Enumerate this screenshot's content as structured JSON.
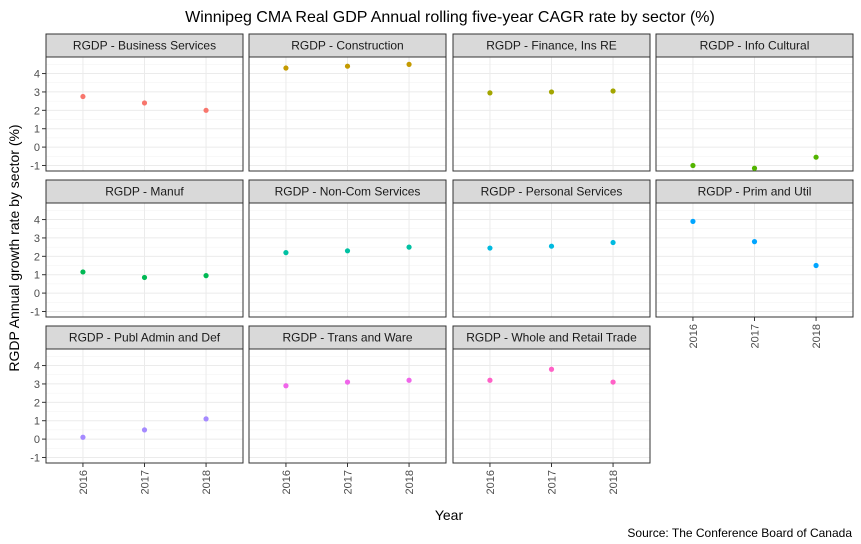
{
  "chart_data": {
    "type": "scatter",
    "title": "Winnipeg CMA Real GDP Annual rolling five-year CAGR rate by sector (%)",
    "xlabel": "Year",
    "ylabel": "RGDP Annual growth rate by sector (%)",
    "caption": "Source: The Conference Board of Canada",
    "x": [
      "2016",
      "2017",
      "2018"
    ],
    "ylim": [
      -1.3,
      4.9
    ],
    "yticks": [
      "-1",
      "0",
      "1",
      "2",
      "3",
      "4"
    ],
    "grid": true,
    "legend": "none",
    "panels": [
      {
        "name": "RGDP - Business Services",
        "color": "#F8766D",
        "values": [
          2.75,
          2.4,
          2.0
        ]
      },
      {
        "name": "RGDP - Construction",
        "color": "#C49A00",
        "values": [
          4.3,
          4.4,
          4.5
        ]
      },
      {
        "name": "RGDP - Finance, Ins RE",
        "color": "#A3A500",
        "values": [
          2.95,
          3.0,
          3.05
        ]
      },
      {
        "name": "RGDP - Info Cultural",
        "color": "#53B400",
        "values": [
          -1.0,
          -1.15,
          -0.55
        ]
      },
      {
        "name": "RGDP - Manuf",
        "color": "#00B954",
        "values": [
          1.15,
          0.85,
          0.95
        ]
      },
      {
        "name": "RGDP - Non-Com Services",
        "color": "#00C1A3",
        "values": [
          2.2,
          2.3,
          2.5
        ]
      },
      {
        "name": "RGDP - Personal Services",
        "color": "#00BAE0",
        "values": [
          2.45,
          2.55,
          2.75
        ]
      },
      {
        "name": "RGDP - Prim and Util",
        "color": "#00A5FF",
        "values": [
          3.9,
          2.8,
          1.5
        ]
      },
      {
        "name": "RGDP - Publ Admin and Def",
        "color": "#A58AFF",
        "values": [
          0.1,
          0.5,
          1.1
        ]
      },
      {
        "name": "RGDP - Trans and Ware",
        "color": "#F066EA",
        "values": [
          2.9,
          3.1,
          3.2
        ]
      },
      {
        "name": "RGDP - Whole and Retail Trade",
        "color": "#FF61C7",
        "values": [
          3.2,
          3.8,
          3.1
        ]
      }
    ]
  }
}
